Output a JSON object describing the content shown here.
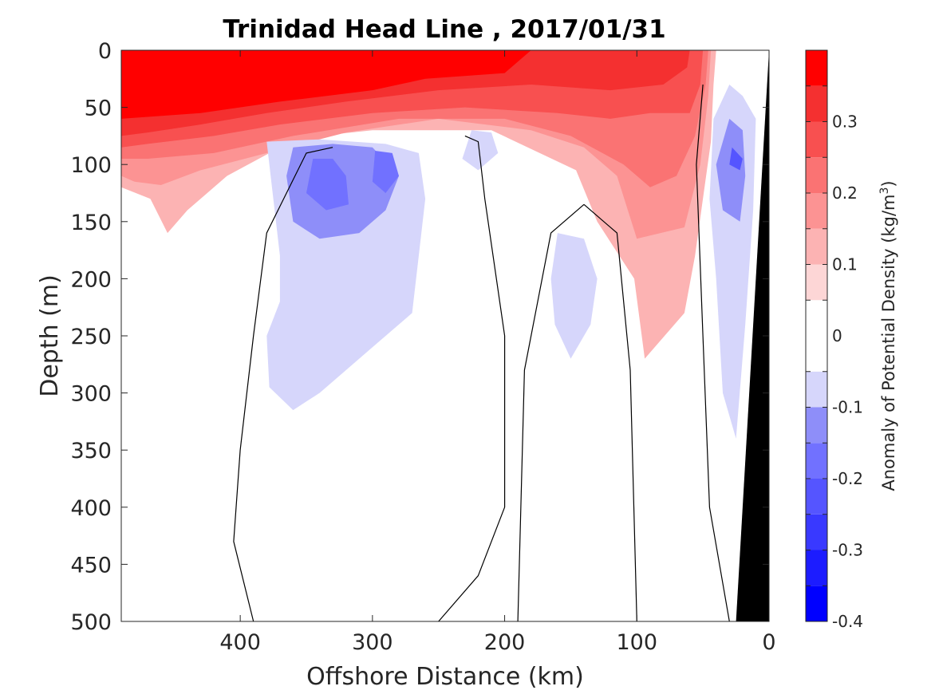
{
  "chart_data": {
    "type": "heatmap",
    "title": "Trinidad Head Line , 2017/01/31",
    "xlabel": "Offshore Distance (km)",
    "ylabel": "Depth (m)",
    "colorbar_label": "Anomaly of Potential Density (kg/m",
    "colorbar_label_sup": "3",
    "colorbar_label_end": ")",
    "x_axis_reversed": true,
    "y_axis_reversed": true,
    "xlim": [
      490,
      0
    ],
    "ylim": [
      0,
      500
    ],
    "x_ticks": [
      400,
      300,
      200,
      100,
      0
    ],
    "y_ticks": [
      0,
      50,
      100,
      150,
      200,
      250,
      300,
      350,
      400,
      450,
      500
    ],
    "colorbar_ticks": [
      "0.3",
      "0.2",
      "0.1",
      "0",
      "-0.1",
      "-0.2",
      "-0.3",
      "-0.4"
    ],
    "colorbar_tick_values": [
      0.3,
      0.2,
      0.1,
      0,
      -0.1,
      -0.2,
      -0.3,
      -0.4
    ],
    "clim": [
      -0.4,
      0.4
    ],
    "color_levels": [
      {
        "range": [
          -0.4,
          -0.35
        ],
        "color": "#0000ff"
      },
      {
        "range": [
          -0.35,
          -0.3
        ],
        "color": "#1c1cff"
      },
      {
        "range": [
          -0.3,
          -0.25
        ],
        "color": "#3939ff"
      },
      {
        "range": [
          -0.25,
          -0.2
        ],
        "color": "#5555ff"
      },
      {
        "range": [
          -0.2,
          -0.15
        ],
        "color": "#7171ff"
      },
      {
        "range": [
          -0.15,
          -0.1
        ],
        "color": "#8e8ef9"
      },
      {
        "range": [
          -0.1,
          -0.05
        ],
        "color": "#d6d6fb"
      },
      {
        "range": [
          -0.05,
          0.05
        ],
        "color": "#ffffff"
      },
      {
        "range": [
          0.05,
          0.1
        ],
        "color": "#fdd6d6"
      },
      {
        "range": [
          0.1,
          0.15
        ],
        "color": "#fcb3b3"
      },
      {
        "range": [
          0.15,
          0.2
        ],
        "color": "#fc9393"
      },
      {
        "range": [
          0.2,
          0.25
        ],
        "color": "#fa7373"
      },
      {
        "range": [
          0.25,
          0.3
        ],
        "color": "#f85050"
      },
      {
        "range": [
          0.3,
          0.35
        ],
        "color": "#f43030"
      },
      {
        "range": [
          0.35,
          0.4
        ],
        "color": "#ff0000"
      }
    ],
    "regions": [
      {
        "name": "surface-warm-layer",
        "anomaly": 0.1,
        "points": [
          [
            490,
            0
          ],
          [
            40,
            0
          ],
          [
            42,
            30
          ],
          [
            44,
            80
          ],
          [
            50,
            130
          ],
          [
            56,
            180
          ],
          [
            64,
            230
          ],
          [
            94,
            270
          ],
          [
            102,
            200
          ],
          [
            130,
            150
          ],
          [
            146,
            105
          ],
          [
            210,
            70
          ],
          [
            300,
            70
          ],
          [
            340,
            75
          ],
          [
            370,
            85
          ],
          [
            410,
            110
          ],
          [
            440,
            140
          ],
          [
            455,
            160
          ],
          [
            468,
            130
          ],
          [
            490,
            120
          ]
        ]
      },
      {
        "name": "surface-warm-layer",
        "anomaly": 0.15,
        "points": [
          [
            490,
            0
          ],
          [
            44,
            0
          ],
          [
            46,
            40
          ],
          [
            52,
            100
          ],
          [
            64,
            155
          ],
          [
            100,
            165
          ],
          [
            115,
            110
          ],
          [
            140,
            85
          ],
          [
            180,
            70
          ],
          [
            250,
            60
          ],
          [
            320,
            72
          ],
          [
            380,
            90
          ],
          [
            430,
            105
          ],
          [
            460,
            118
          ],
          [
            480,
            115
          ],
          [
            490,
            110
          ]
        ]
      },
      {
        "name": "surface-warm-layer",
        "anomaly": 0.2,
        "points": [
          [
            490,
            0
          ],
          [
            46,
            0
          ],
          [
            48,
            30
          ],
          [
            56,
            75
          ],
          [
            70,
            110
          ],
          [
            90,
            120
          ],
          [
            110,
            100
          ],
          [
            150,
            75
          ],
          [
            200,
            60
          ],
          [
            280,
            60
          ],
          [
            360,
            75
          ],
          [
            420,
            90
          ],
          [
            470,
            95
          ],
          [
            490,
            95
          ]
        ]
      },
      {
        "name": "surface-warm-layer",
        "anomaly": 0.25,
        "points": [
          [
            490,
            0
          ],
          [
            50,
            0
          ],
          [
            52,
            30
          ],
          [
            60,
            55
          ],
          [
            90,
            55
          ],
          [
            120,
            60
          ],
          [
            160,
            55
          ],
          [
            230,
            50
          ],
          [
            300,
            55
          ],
          [
            370,
            65
          ],
          [
            420,
            75
          ],
          [
            470,
            82
          ],
          [
            490,
            85
          ]
        ]
      },
      {
        "name": "surface-warm-layer",
        "anomaly": 0.3,
        "points": [
          [
            490,
            0
          ],
          [
            60,
            0
          ],
          [
            62,
            15
          ],
          [
            80,
            30
          ],
          [
            120,
            35
          ],
          [
            180,
            30
          ],
          [
            250,
            35
          ],
          [
            320,
            45
          ],
          [
            380,
            55
          ],
          [
            430,
            65
          ],
          [
            470,
            72
          ],
          [
            490,
            75
          ]
        ]
      },
      {
        "name": "surface-warm-layer",
        "anomaly": 0.35,
        "points": [
          [
            490,
            0
          ],
          [
            180,
            0
          ],
          [
            200,
            20
          ],
          [
            260,
            25
          ],
          [
            300,
            35
          ],
          [
            370,
            45
          ],
          [
            430,
            55
          ],
          [
            490,
            60
          ]
        ]
      },
      {
        "name": "central-cold-pool",
        "anomaly": -0.1,
        "points": [
          [
            380,
            80
          ],
          [
            340,
            78
          ],
          [
            290,
            82
          ],
          [
            265,
            90
          ],
          [
            260,
            130
          ],
          [
            265,
            180
          ],
          [
            270,
            230
          ],
          [
            300,
            260
          ],
          [
            320,
            280
          ],
          [
            340,
            300
          ],
          [
            360,
            315
          ],
          [
            378,
            295
          ],
          [
            380,
            250
          ],
          [
            370,
            220
          ],
          [
            370,
            180
          ],
          [
            375,
            130
          ]
        ]
      },
      {
        "name": "central-cold-pool",
        "anomaly": -0.15,
        "points": [
          [
            360,
            85
          ],
          [
            330,
            82
          ],
          [
            300,
            85
          ],
          [
            280,
            110
          ],
          [
            290,
            140
          ],
          [
            310,
            160
          ],
          [
            340,
            165
          ],
          [
            360,
            150
          ],
          [
            365,
            110
          ]
        ]
      },
      {
        "name": "central-cold-pool",
        "anomaly": -0.2,
        "points": [
          [
            345,
            95
          ],
          [
            330,
            95
          ],
          [
            320,
            110
          ],
          [
            318,
            135
          ],
          [
            335,
            140
          ],
          [
            350,
            125
          ]
        ]
      },
      {
        "name": "central-cold-pool",
        "anomaly": -0.2,
        "points": [
          [
            298,
            88
          ],
          [
            285,
            90
          ],
          [
            280,
            110
          ],
          [
            290,
            125
          ],
          [
            300,
            115
          ]
        ]
      },
      {
        "name": "mid-cold-patch",
        "anomaly": -0.1,
        "points": [
          [
            225,
            70
          ],
          [
            210,
            72
          ],
          [
            205,
            90
          ],
          [
            220,
            105
          ],
          [
            232,
            95
          ]
        ]
      },
      {
        "name": "deep-cold-column",
        "anomaly": -0.1,
        "points": [
          [
            160,
            160
          ],
          [
            140,
            165
          ],
          [
            130,
            200
          ],
          [
            135,
            240
          ],
          [
            150,
            270
          ],
          [
            162,
            240
          ],
          [
            165,
            200
          ]
        ]
      },
      {
        "name": "nearshore-cold-strip",
        "anomaly": -0.1,
        "points": [
          [
            30,
            30
          ],
          [
            20,
            40
          ],
          [
            10,
            60
          ],
          [
            12,
            140
          ],
          [
            18,
            240
          ],
          [
            25,
            340
          ],
          [
            35,
            300
          ],
          [
            40,
            200
          ],
          [
            45,
            130
          ],
          [
            42,
            60
          ]
        ]
      },
      {
        "name": "nearshore-cold-strip",
        "anomaly": -0.15,
        "points": [
          [
            30,
            60
          ],
          [
            20,
            70
          ],
          [
            18,
            110
          ],
          [
            22,
            150
          ],
          [
            35,
            140
          ],
          [
            40,
            100
          ]
        ]
      },
      {
        "name": "nearshore-cold-strip",
        "anomaly": -0.25,
        "points": [
          [
            28,
            85
          ],
          [
            20,
            95
          ],
          [
            22,
            105
          ],
          [
            30,
            100
          ]
        ]
      }
    ],
    "zero_contours": [
      {
        "name": "outer-zero-contour",
        "points": [
          [
            330,
            85
          ],
          [
            350,
            90
          ],
          [
            380,
            160
          ],
          [
            390,
            250
          ],
          [
            400,
            350
          ],
          [
            405,
            430
          ],
          [
            390,
            500
          ]
        ]
      },
      {
        "name": "mid-zero-contour",
        "points": [
          [
            230,
            75
          ],
          [
            220,
            80
          ],
          [
            215,
            130
          ],
          [
            200,
            250
          ],
          [
            200,
            400
          ],
          [
            220,
            460
          ],
          [
            250,
            500
          ]
        ]
      },
      {
        "name": "inner-zero-contour",
        "points": [
          [
            140,
            135
          ],
          [
            165,
            160
          ],
          [
            185,
            280
          ],
          [
            190,
            500
          ]
        ]
      },
      {
        "name": "inner-zero-contour",
        "points": [
          [
            140,
            135
          ],
          [
            115,
            160
          ],
          [
            105,
            280
          ],
          [
            100,
            500
          ]
        ]
      },
      {
        "name": "nearshore-zero-contour",
        "points": [
          [
            50,
            30
          ],
          [
            55,
            100
          ],
          [
            50,
            250
          ],
          [
            45,
            400
          ],
          [
            30,
            500
          ]
        ]
      }
    ],
    "seafloor": {
      "name": "continental-shelf-bathymetry",
      "points": [
        [
          0,
          0
        ],
        [
          25,
          500
        ],
        [
          0,
          500
        ]
      ],
      "color": "#000000"
    }
  }
}
